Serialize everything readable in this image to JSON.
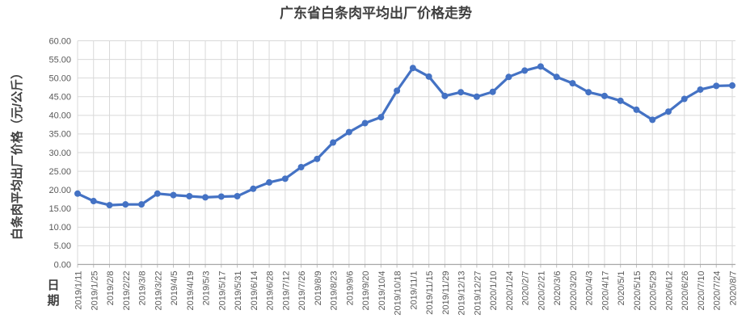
{
  "chart_data": {
    "type": "line",
    "title": "广东省白条肉平均出厂价格走势",
    "ylabel": "白条肉平均出厂价格（元/公斤）",
    "xlabel": "日期",
    "ylim": [
      0,
      60
    ],
    "ytick_step": 5,
    "ytick_labels": [
      "0.00",
      "5.00",
      "10.00",
      "15.00",
      "20.00",
      "25.00",
      "30.00",
      "35.00",
      "40.00",
      "45.00",
      "50.00",
      "55.00",
      "60.00"
    ],
    "grid": true,
    "legend": "none",
    "marker": "circle",
    "categories": [
      "2019/1/11",
      "2019/1/25",
      "2019/2/8",
      "2019/2/22",
      "2019/3/8",
      "2019/3/22",
      "2019/4/5",
      "2019/4/19",
      "2019/5/3",
      "2019/5/17",
      "2019/5/31",
      "2019/6/14",
      "2019/6/28",
      "2019/7/12",
      "2019/7/26",
      "2019/8/9",
      "2019/8/23",
      "2019/9/6",
      "2019/9/20",
      "2019/10/4",
      "2019/10/18",
      "2019/11/1",
      "2019/11/15",
      "2019/11/29",
      "2019/12/13",
      "2019/12/27",
      "2020/1/10",
      "2020/1/24",
      "2020/2/7",
      "2020/2/21",
      "2020/3/6",
      "2020/3/20",
      "2020/4/3",
      "2020/4/17",
      "2020/5/1",
      "2020/5/15",
      "2020/5/29",
      "2020/6/12",
      "2020/6/26",
      "2020/7/10",
      "2020/7/24",
      "2020/8/7"
    ],
    "values": [
      19.0,
      17.0,
      15.9,
      16.1,
      16.1,
      19.0,
      18.6,
      18.3,
      18.0,
      18.2,
      18.3,
      20.3,
      22.0,
      23.0,
      26.1,
      28.3,
      32.7,
      35.5,
      37.9,
      39.5,
      46.6,
      52.7,
      50.4,
      45.2,
      46.2,
      45.0,
      46.3,
      50.3,
      52.0,
      53.1,
      50.3,
      48.6,
      46.2,
      45.2,
      43.9,
      41.5,
      38.8,
      41.0,
      44.4,
      46.9,
      47.9,
      48.0
    ],
    "colors": {
      "series": "#4472C4",
      "gridline": "#D9D9D9",
      "axis_line": "#A6A6A6",
      "tick_mark": "#BFBFBF",
      "tick_text": "#595959",
      "title_text": "#404040",
      "background": "#FFFFFF"
    }
  }
}
